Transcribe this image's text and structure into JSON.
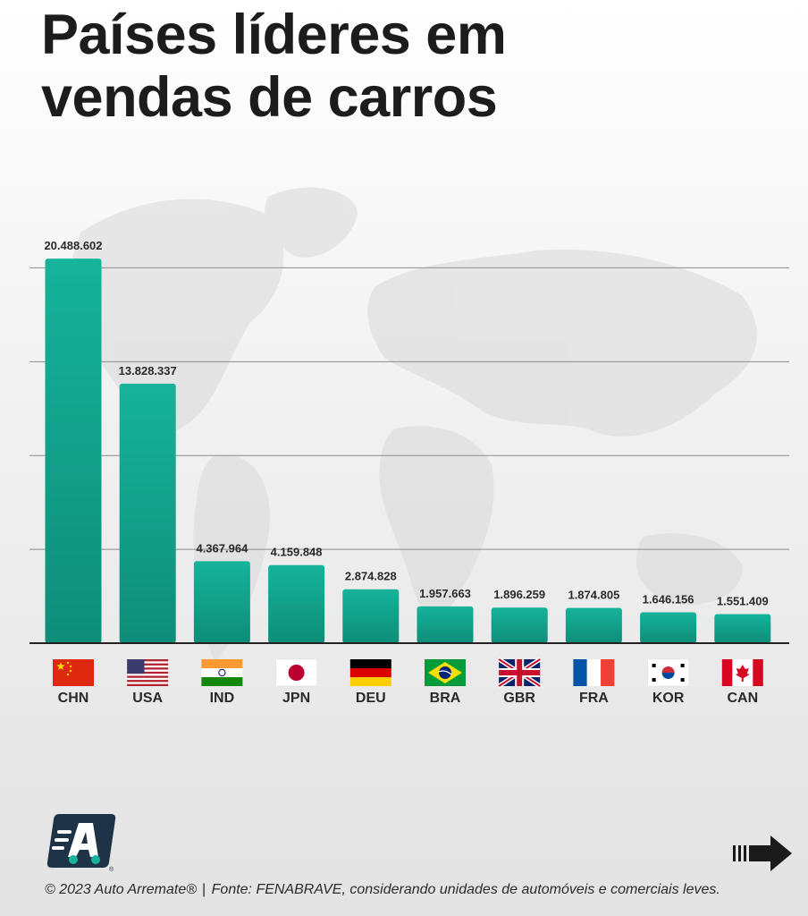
{
  "title": {
    "line1": "Países líderes em",
    "line2": "vendas de carros"
  },
  "colors": {
    "bar_top": "#16b39a",
    "bar_bottom": "#0e8d79",
    "axis": "#222222",
    "grid": "#8c8c8c",
    "title": "#1c1c1c",
    "logo_bg": "#1f3346",
    "logo_accent": "#17b3a0"
  },
  "chart_data": {
    "type": "bar",
    "title": "Países líderes em vendas de carros",
    "xlabel": "",
    "ylabel": "",
    "ylim": [
      0,
      24000000
    ],
    "grid": "horizontal",
    "categories": [
      "CHN",
      "USA",
      "IND",
      "JPN",
      "DEU",
      "BRA",
      "GBR",
      "FRA",
      "KOR",
      "CAN"
    ],
    "values": [
      20488602,
      13828337,
      4367964,
      4159848,
      2874828,
      1957663,
      1896259,
      1874805,
      1646156,
      1551409
    ],
    "value_labels": [
      "20.488.602",
      "13.828.337",
      "4.367.964",
      "4.159.848",
      "2.874.828",
      "1.957.663",
      "1.896.259",
      "1.874.805",
      "1.646.156",
      "1.551.409"
    ],
    "flags": [
      "flag-china-icon",
      "flag-usa-icon",
      "flag-india-icon",
      "flag-japan-icon",
      "flag-germany-icon",
      "flag-brazil-icon",
      "flag-uk-icon",
      "flag-france-icon",
      "flag-south-korea-icon",
      "flag-canada-icon"
    ]
  },
  "footer": {
    "copyright": "© 2023 Auto Arremate®",
    "separator": "|",
    "source": "Fonte: FENABRAVE, considerando unidades de automóveis e comerciais leves."
  },
  "logo": {
    "name": "auto-arremate-logo-icon",
    "registered_mark": "®"
  },
  "navigation": {
    "next": "next-arrow-icon"
  }
}
